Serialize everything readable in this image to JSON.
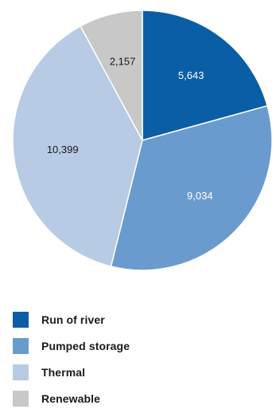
{
  "chart_data": {
    "type": "pie",
    "title": "",
    "labels": [
      "Run of river",
      "Pumped storage",
      "Thermal",
      "Renewable"
    ],
    "values": [
      5643,
      9034,
      10399,
      2157
    ],
    "value_labels": [
      "5,643",
      "9,034",
      "10,399",
      "2,157"
    ],
    "colors": [
      "#0A5EA6",
      "#6A9BCE",
      "#B8CBE5",
      "#C8C8C8"
    ],
    "label_colors": [
      "#ffffff",
      "#ffffff",
      "#1a1a1a",
      "#1a1a1a"
    ],
    "start_angle": "12 o'clock",
    "direction": "clockwise",
    "legend_position": "bottom-left"
  },
  "legend": {
    "items": [
      {
        "label": "Run of river",
        "color": "#0A5EA6"
      },
      {
        "label": "Pumped storage",
        "color": "#6A9BCE"
      },
      {
        "label": "Thermal",
        "color": "#B8CBE5"
      },
      {
        "label": "Renewable",
        "color": "#C8C8C8"
      }
    ]
  }
}
